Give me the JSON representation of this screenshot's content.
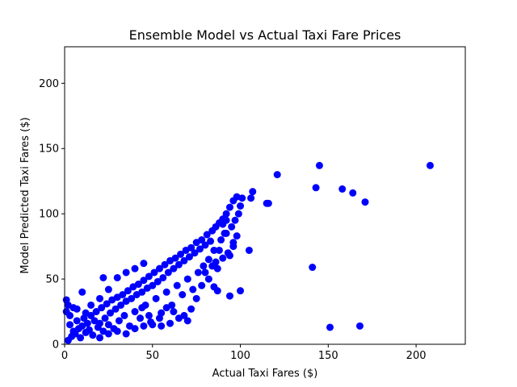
{
  "chart_data": {
    "type": "scatter",
    "title": "Ensemble Model vs Actual Taxi Fare Prices",
    "xlabel": "Actual Taxi Fares ($)",
    "ylabel": "Model Predicted Taxi Fares ($)",
    "xlim": [
      0,
      228
    ],
    "ylim": [
      0,
      228
    ],
    "xticks": [
      0,
      50,
      100,
      150,
      200
    ],
    "yticks": [
      0,
      50,
      100,
      150,
      200
    ],
    "grid": false,
    "legend": "none",
    "marker_color": "#0000ff",
    "series": [
      {
        "points": [
          [
            2,
            3
          ],
          [
            4,
            6
          ],
          [
            5,
            10
          ],
          [
            3,
            15
          ],
          [
            6,
            8
          ],
          [
            8,
            12
          ],
          [
            7,
            18
          ],
          [
            9,
            5
          ],
          [
            10,
            14
          ],
          [
            12,
            9
          ],
          [
            11,
            20
          ],
          [
            13,
            16
          ],
          [
            14,
            11
          ],
          [
            15,
            22
          ],
          [
            16,
            7
          ],
          [
            17,
            18
          ],
          [
            18,
            25
          ],
          [
            19,
            13
          ],
          [
            20,
            16
          ],
          [
            21,
            28
          ],
          [
            22,
            10
          ],
          [
            23,
            20
          ],
          [
            24,
            31
          ],
          [
            25,
            15
          ],
          [
            26,
            24
          ],
          [
            27,
            34
          ],
          [
            28,
            12
          ],
          [
            29,
            27
          ],
          [
            30,
            36
          ],
          [
            31,
            18
          ],
          [
            32,
            30
          ],
          [
            33,
            38
          ],
          [
            34,
            22
          ],
          [
            35,
            33
          ],
          [
            36,
            41
          ],
          [
            37,
            14
          ],
          [
            38,
            35
          ],
          [
            39,
            44
          ],
          [
            40,
            25
          ],
          [
            41,
            38
          ],
          [
            42,
            46
          ],
          [
            43,
            20
          ],
          [
            44,
            40
          ],
          [
            45,
            49
          ],
          [
            46,
            30
          ],
          [
            47,
            43
          ],
          [
            48,
            52
          ],
          [
            49,
            17
          ],
          [
            50,
            45
          ],
          [
            51,
            55
          ],
          [
            52,
            35
          ],
          [
            53,
            48
          ],
          [
            54,
            58
          ],
          [
            55,
            24
          ],
          [
            56,
            51
          ],
          [
            57,
            61
          ],
          [
            58,
            40
          ],
          [
            59,
            55
          ],
          [
            60,
            64
          ],
          [
            61,
            30
          ],
          [
            62,
            58
          ],
          [
            63,
            66
          ],
          [
            64,
            45
          ],
          [
            65,
            61
          ],
          [
            66,
            69
          ],
          [
            67,
            38
          ],
          [
            68,
            64
          ],
          [
            69,
            72
          ],
          [
            70,
            50
          ],
          [
            71,
            67
          ],
          [
            72,
            74
          ],
          [
            73,
            42
          ],
          [
            74,
            70
          ],
          [
            75,
            78
          ],
          [
            76,
            55
          ],
          [
            77,
            73
          ],
          [
            78,
            80
          ],
          [
            79,
            60
          ],
          [
            80,
            76
          ],
          [
            81,
            84
          ],
          [
            82,
            65
          ],
          [
            83,
            79
          ],
          [
            84,
            87
          ],
          [
            85,
            72
          ],
          [
            86,
            90
          ],
          [
            87,
            58
          ],
          [
            88,
            93
          ],
          [
            89,
            80
          ],
          [
            90,
            96
          ],
          [
            91,
            85
          ],
          [
            92,
            100
          ],
          [
            93,
            70
          ],
          [
            94,
            105
          ],
          [
            95,
            90
          ],
          [
            96,
            110
          ],
          [
            97,
            95
          ],
          [
            98,
            113
          ],
          [
            99,
            100
          ],
          [
            100,
            106
          ],
          [
            101,
            112
          ],
          [
            1,
            25
          ],
          [
            2,
            30
          ],
          [
            1,
            34
          ],
          [
            3,
            22
          ],
          [
            5,
            28
          ],
          [
            7,
            27
          ],
          [
            10,
            40
          ],
          [
            12,
            24
          ],
          [
            15,
            30
          ],
          [
            20,
            35
          ],
          [
            22,
            51
          ],
          [
            25,
            42
          ],
          [
            30,
            51
          ],
          [
            35,
            55
          ],
          [
            40,
            58
          ],
          [
            45,
            62
          ],
          [
            20,
            5
          ],
          [
            25,
            8
          ],
          [
            30,
            10
          ],
          [
            35,
            8
          ],
          [
            40,
            12
          ],
          [
            45,
            14
          ],
          [
            50,
            15
          ],
          [
            55,
            14
          ],
          [
            60,
            16
          ],
          [
            65,
            20
          ],
          [
            70,
            18
          ],
          [
            75,
            35
          ],
          [
            72,
            27
          ],
          [
            68,
            22
          ],
          [
            62,
            25
          ],
          [
            58,
            28
          ],
          [
            54,
            20
          ],
          [
            48,
            22
          ],
          [
            44,
            28
          ],
          [
            78,
            45
          ],
          [
            80,
            55
          ],
          [
            82,
            50
          ],
          [
            84,
            60
          ],
          [
            86,
            63
          ],
          [
            88,
            72
          ],
          [
            90,
            66
          ],
          [
            92,
            85
          ],
          [
            94,
            68
          ],
          [
            96,
            75
          ],
          [
            98,
            83
          ],
          [
            85,
            44
          ],
          [
            87,
            41
          ],
          [
            94,
            37
          ],
          [
            100,
            41
          ],
          [
            96,
            78
          ],
          [
            90,
            92
          ],
          [
            92,
            95
          ],
          [
            105,
            72
          ],
          [
            106,
            112
          ],
          [
            107,
            117
          ],
          [
            115,
            108
          ],
          [
            116,
            108
          ],
          [
            121,
            130
          ],
          [
            141,
            59
          ],
          [
            143,
            120
          ],
          [
            145,
            137
          ],
          [
            151,
            13
          ],
          [
            158,
            119
          ],
          [
            164,
            116
          ],
          [
            168,
            14
          ],
          [
            171,
            109
          ],
          [
            208,
            137
          ]
        ]
      }
    ]
  }
}
